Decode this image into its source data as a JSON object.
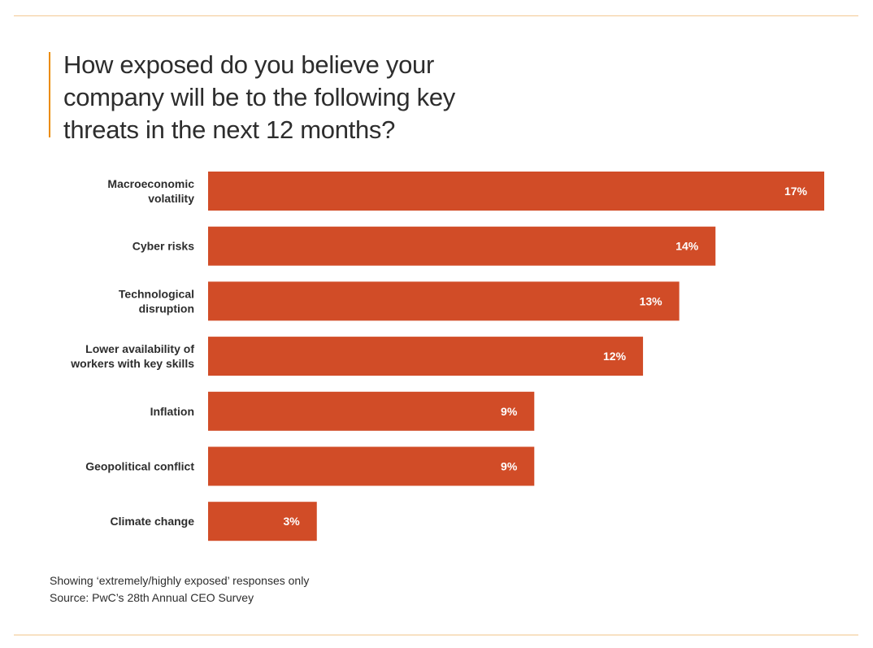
{
  "title": "How exposed do you believe your company will be to the following key threats in the next 12 months?",
  "footnote": "Showing ‘extremely/highly exposed’ responses only",
  "source": "Source: PwC’s 28th Annual CEO Survey",
  "colors": {
    "bar": "#d14c27",
    "accent": "#eb8c00",
    "rule": "#f3c894"
  },
  "chart_data": {
    "type": "bar",
    "orientation": "horizontal",
    "categories": [
      [
        "Macroeconomic",
        "volatility"
      ],
      [
        "Cyber risks"
      ],
      [
        "Technological",
        "disruption"
      ],
      [
        "Lower availability of",
        "workers with key skills"
      ],
      [
        "Inflation"
      ],
      [
        "Geopolitical conflict"
      ],
      [
        "Climate change"
      ]
    ],
    "values": [
      17,
      14,
      13,
      12,
      9,
      9,
      3
    ],
    "value_labels": [
      "17%",
      "14%",
      "13%",
      "12%",
      "9%",
      "9%",
      "3%"
    ],
    "unit": "%",
    "xlim": [
      0,
      17
    ],
    "grid": false,
    "legend": "none"
  }
}
